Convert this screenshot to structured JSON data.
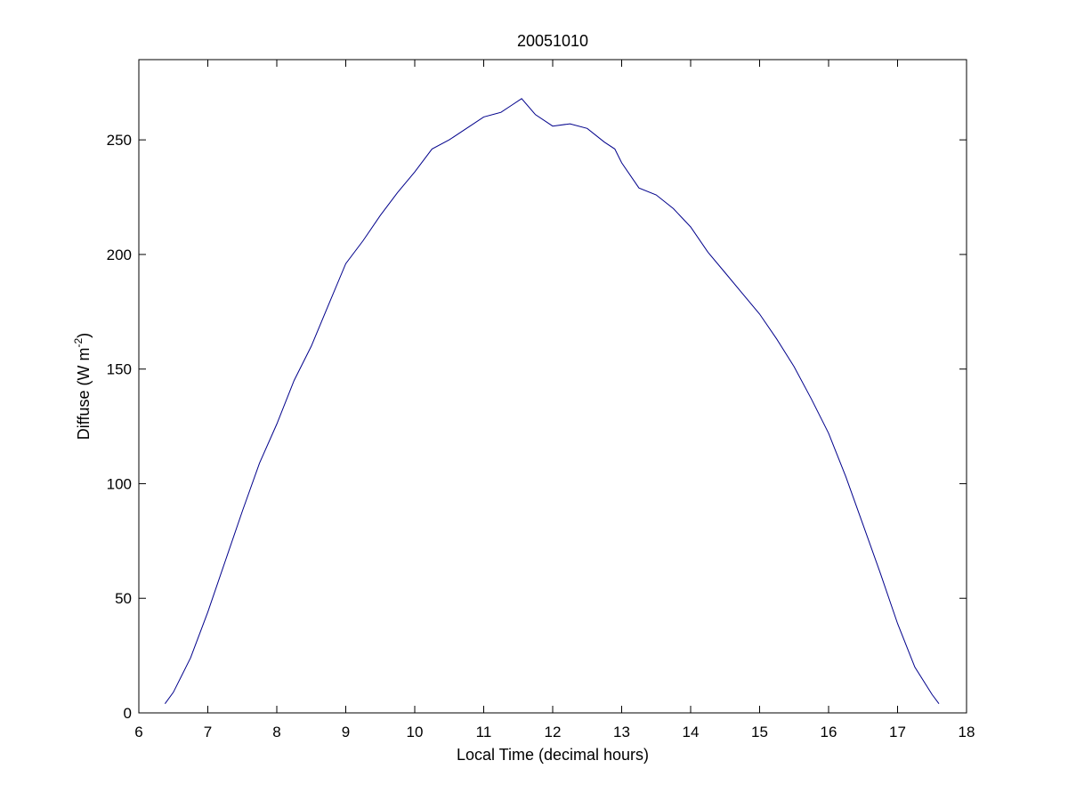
{
  "chart_data": {
    "type": "line",
    "title": "20051010",
    "xlabel": "Local Time (decimal hours)",
    "ylabel": {
      "text": "Diffuse (W m",
      "superscript": "-2",
      "suffix": ")"
    },
    "xlim": [
      6,
      18
    ],
    "ylim": [
      0,
      285
    ],
    "xticks": [
      6,
      7,
      8,
      9,
      10,
      11,
      12,
      13,
      14,
      15,
      16,
      17,
      18
    ],
    "yticks": [
      0,
      50,
      100,
      150,
      200,
      250
    ],
    "grid": false,
    "line_color": "#00008B",
    "series": [
      {
        "x": [
          6.38,
          6.5,
          6.75,
          7.0,
          7.25,
          7.5,
          7.75,
          8.0,
          8.25,
          8.5,
          8.75,
          9.0,
          9.25,
          9.5,
          9.75,
          10.0,
          10.25,
          10.5,
          10.75,
          11.0,
          11.25,
          11.4,
          11.55,
          11.75,
          12.0,
          12.25,
          12.5,
          12.75,
          12.9,
          13.0,
          13.25,
          13.5,
          13.75,
          14.0,
          14.25,
          14.5,
          14.75,
          15.0,
          15.25,
          15.5,
          15.75,
          16.0,
          16.25,
          16.5,
          16.75,
          17.0,
          17.25,
          17.5,
          17.6
        ],
        "y": [
          4,
          9,
          24,
          44,
          66,
          88,
          109,
          126,
          145,
          160,
          178,
          196,
          206,
          217,
          227,
          236,
          246,
          250,
          255,
          260,
          262,
          265,
          268,
          261,
          256,
          257,
          255,
          249,
          246,
          240,
          229,
          226,
          220,
          212,
          201,
          192,
          183,
          174,
          163,
          151,
          137,
          122,
          103,
          82,
          61,
          39,
          20,
          8,
          4
        ]
      }
    ]
  }
}
